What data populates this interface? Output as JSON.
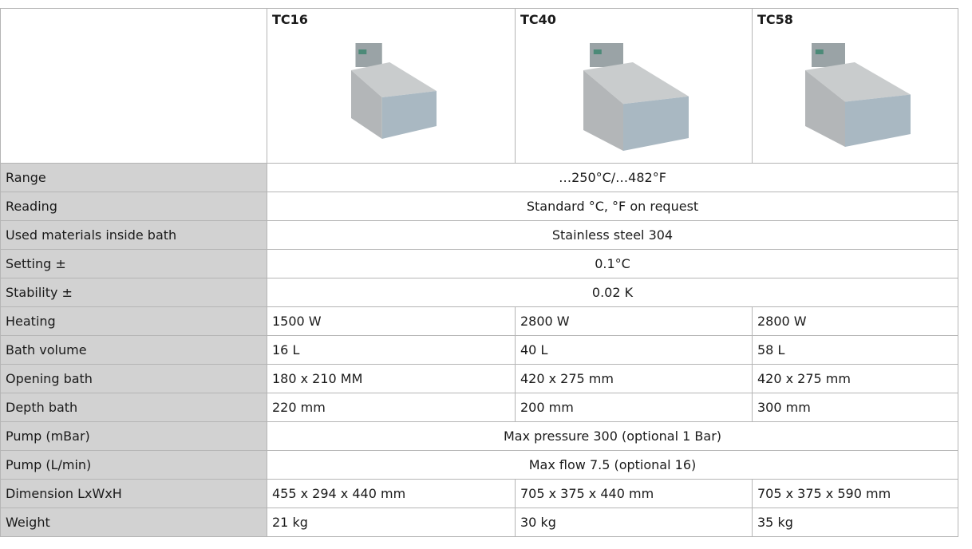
{
  "table": {
    "header": [
      "TC16",
      "TC40",
      "TC58"
    ],
    "rows": [
      [
        "Range",
        "…250°C/…482°F"
      ],
      [
        "Reading",
        "Standard °C,  °F on request"
      ],
      [
        "Used materials inside bath",
        "Stainless steel 304"
      ],
      [
        "Setting ±",
        "0.1°C"
      ],
      [
        "Stability ±",
        "0.02 K"
      ],
      [
        "Heating",
        "1500 W",
        "2800 W",
        "2800 W"
      ],
      [
        "Bath volume",
        "16 L",
        "40 L",
        "58 L"
      ],
      [
        "Opening bath",
        "180 x 210 MM",
        "420 x 275 mm",
        "420 x 275 mm"
      ],
      [
        "Depth bath",
        "220 mm",
        "200 mm",
        "300 mm"
      ],
      [
        "Pump (mBar)",
        "Max pressure 300 (optional 1 Bar)"
      ],
      [
        "Pump (L/min)",
        "Max flow 7.5 (optional 16)"
      ],
      [
        "Dimension LxWxH",
        "455 x 294 x 440 mm",
        "705 x 375 x 440 mm",
        "705 x 375 x 590 mm"
      ],
      [
        "Weight",
        "21 kg",
        "30 kg",
        "35 kg"
      ]
    ]
  }
}
